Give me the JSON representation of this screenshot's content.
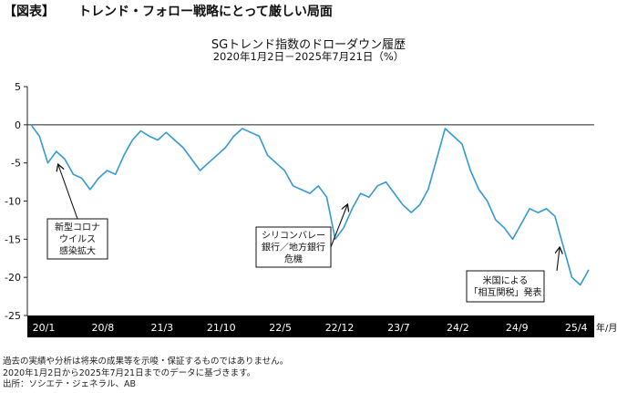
{
  "header": {
    "bracket_label": "【図表】",
    "title": "トレンド・フォロー戦略にとって厳しい局面"
  },
  "chart_data": {
    "type": "line",
    "title": "SGトレンド指数のドローダウン履歴",
    "subtitle": "2020年1月2日－2025年7月21日（%）",
    "x_unit_label": "年/月",
    "x_ticks": [
      "20/1",
      "20/8",
      "21/3",
      "21/10",
      "22/5",
      "22/12",
      "23/7",
      "24/2",
      "24/9",
      "25/4"
    ],
    "ylim": [
      -25,
      5
    ],
    "y_ticks": [
      5,
      0,
      -5,
      -10,
      -15,
      -20,
      -25
    ],
    "grid": false,
    "line_color": "#3399d4",
    "x_axis_band_color": "#000000",
    "series": [
      {
        "x": [
          "2020-01",
          "2020-02",
          "2020-03",
          "2020-04",
          "2020-05",
          "2020-06",
          "2020-07",
          "2020-08",
          "2020-09",
          "2020-10",
          "2020-11",
          "2020-12",
          "2021-01",
          "2021-02",
          "2021-03",
          "2021-04",
          "2021-05",
          "2021-06",
          "2021-07",
          "2021-08",
          "2021-09",
          "2021-10",
          "2021-11",
          "2021-12",
          "2022-01",
          "2022-02",
          "2022-03",
          "2022-04",
          "2022-05",
          "2022-06",
          "2022-07",
          "2022-08",
          "2022-09",
          "2022-10",
          "2022-11",
          "2022-12",
          "2023-01",
          "2023-02",
          "2023-03",
          "2023-04",
          "2023-05",
          "2023-06",
          "2023-07",
          "2023-08",
          "2023-09",
          "2023-10",
          "2023-11",
          "2023-12",
          "2024-01",
          "2024-02",
          "2024-03",
          "2024-04",
          "2024-05",
          "2024-06",
          "2024-07",
          "2024-08",
          "2024-09",
          "2024-10",
          "2024-11",
          "2024-12",
          "2025-01",
          "2025-02",
          "2025-03",
          "2025-04",
          "2025-05",
          "2025-06",
          "2025-07"
        ],
        "values": [
          0,
          -1.5,
          -5,
          -3.5,
          -4.5,
          -6.5,
          -7,
          -8.5,
          -7,
          -6,
          -6.5,
          -4,
          -2,
          -0.8,
          -1.5,
          -2,
          -1,
          -2,
          -3,
          -4.5,
          -6,
          -5,
          -4,
          -3,
          -1.5,
          -0.5,
          -1,
          -1.5,
          -4,
          -5,
          -6,
          -8,
          -8.5,
          -9,
          -8,
          -9.5,
          -15,
          -13.5,
          -11,
          -9,
          -9.5,
          -8,
          -7.5,
          -9,
          -10.5,
          -11.5,
          -10.5,
          -8.5,
          -4.5,
          -0.5,
          -1.5,
          -2.5,
          -6,
          -8.5,
          -10,
          -12.5,
          -13.5,
          -15,
          -13,
          -11,
          -11.5,
          -11,
          -12,
          -16,
          -20,
          -21,
          -19
        ]
      }
    ],
    "annotations": [
      {
        "lines": [
          "新型コロナ",
          "ウイルス",
          "感染拡大"
        ]
      },
      {
        "lines": [
          "シリコンバレー",
          "銀行／地方銀行",
          "危機"
        ]
      },
      {
        "lines": [
          "米国による",
          "「相互関税」発表"
        ]
      }
    ]
  },
  "footnotes": [
    "過去の実績や分析は将来の成果等を示唆・保証するものではありません。",
    "2020年1月2日から2025年7月21日までのデータに基づきます。",
    "出所：ソシエテ・ジェネラル、AB"
  ]
}
